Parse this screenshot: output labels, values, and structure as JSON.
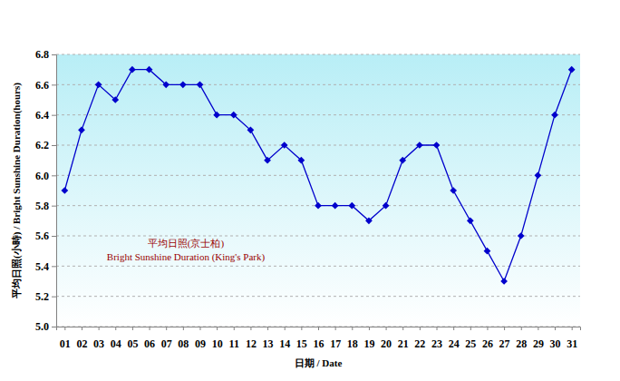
{
  "chart_data": {
    "type": "line",
    "x_label": "日期 / Date",
    "y_label": "平均日照(小時) / Bright Sunshine Duration(hours)",
    "annotations": [
      "平均日照(京士柏)",
      "Bright Sunshine Duration (King's Park)"
    ],
    "categories": [
      "01",
      "02",
      "03",
      "04",
      "05",
      "06",
      "07",
      "08",
      "09",
      "10",
      "11",
      "12",
      "13",
      "14",
      "15",
      "16",
      "17",
      "18",
      "19",
      "20",
      "21",
      "22",
      "23",
      "24",
      "25",
      "26",
      "27",
      "28",
      "29",
      "30",
      "31"
    ],
    "values": [
      5.9,
      6.3,
      6.6,
      6.5,
      6.7,
      6.7,
      6.6,
      6.6,
      6.6,
      6.4,
      6.4,
      6.3,
      6.1,
      6.2,
      6.1,
      5.8,
      5.8,
      5.8,
      5.7,
      5.8,
      6.1,
      6.2,
      6.2,
      5.9,
      5.7,
      5.5,
      5.3,
      5.6,
      6.0,
      6.4,
      6.7
    ],
    "color": "#0000cc",
    "marker": "diamond",
    "line_style": "solid",
    "ylim": [
      5.0,
      6.8
    ],
    "yticks": [
      {
        "value": 5.0,
        "label": "5.0"
      },
      5.2,
      5.4,
      5.6,
      5.8,
      {
        "value": 6.0,
        "label": "6.0"
      },
      6.2,
      6.4,
      6.6,
      6.8
    ],
    "grid": true
  }
}
